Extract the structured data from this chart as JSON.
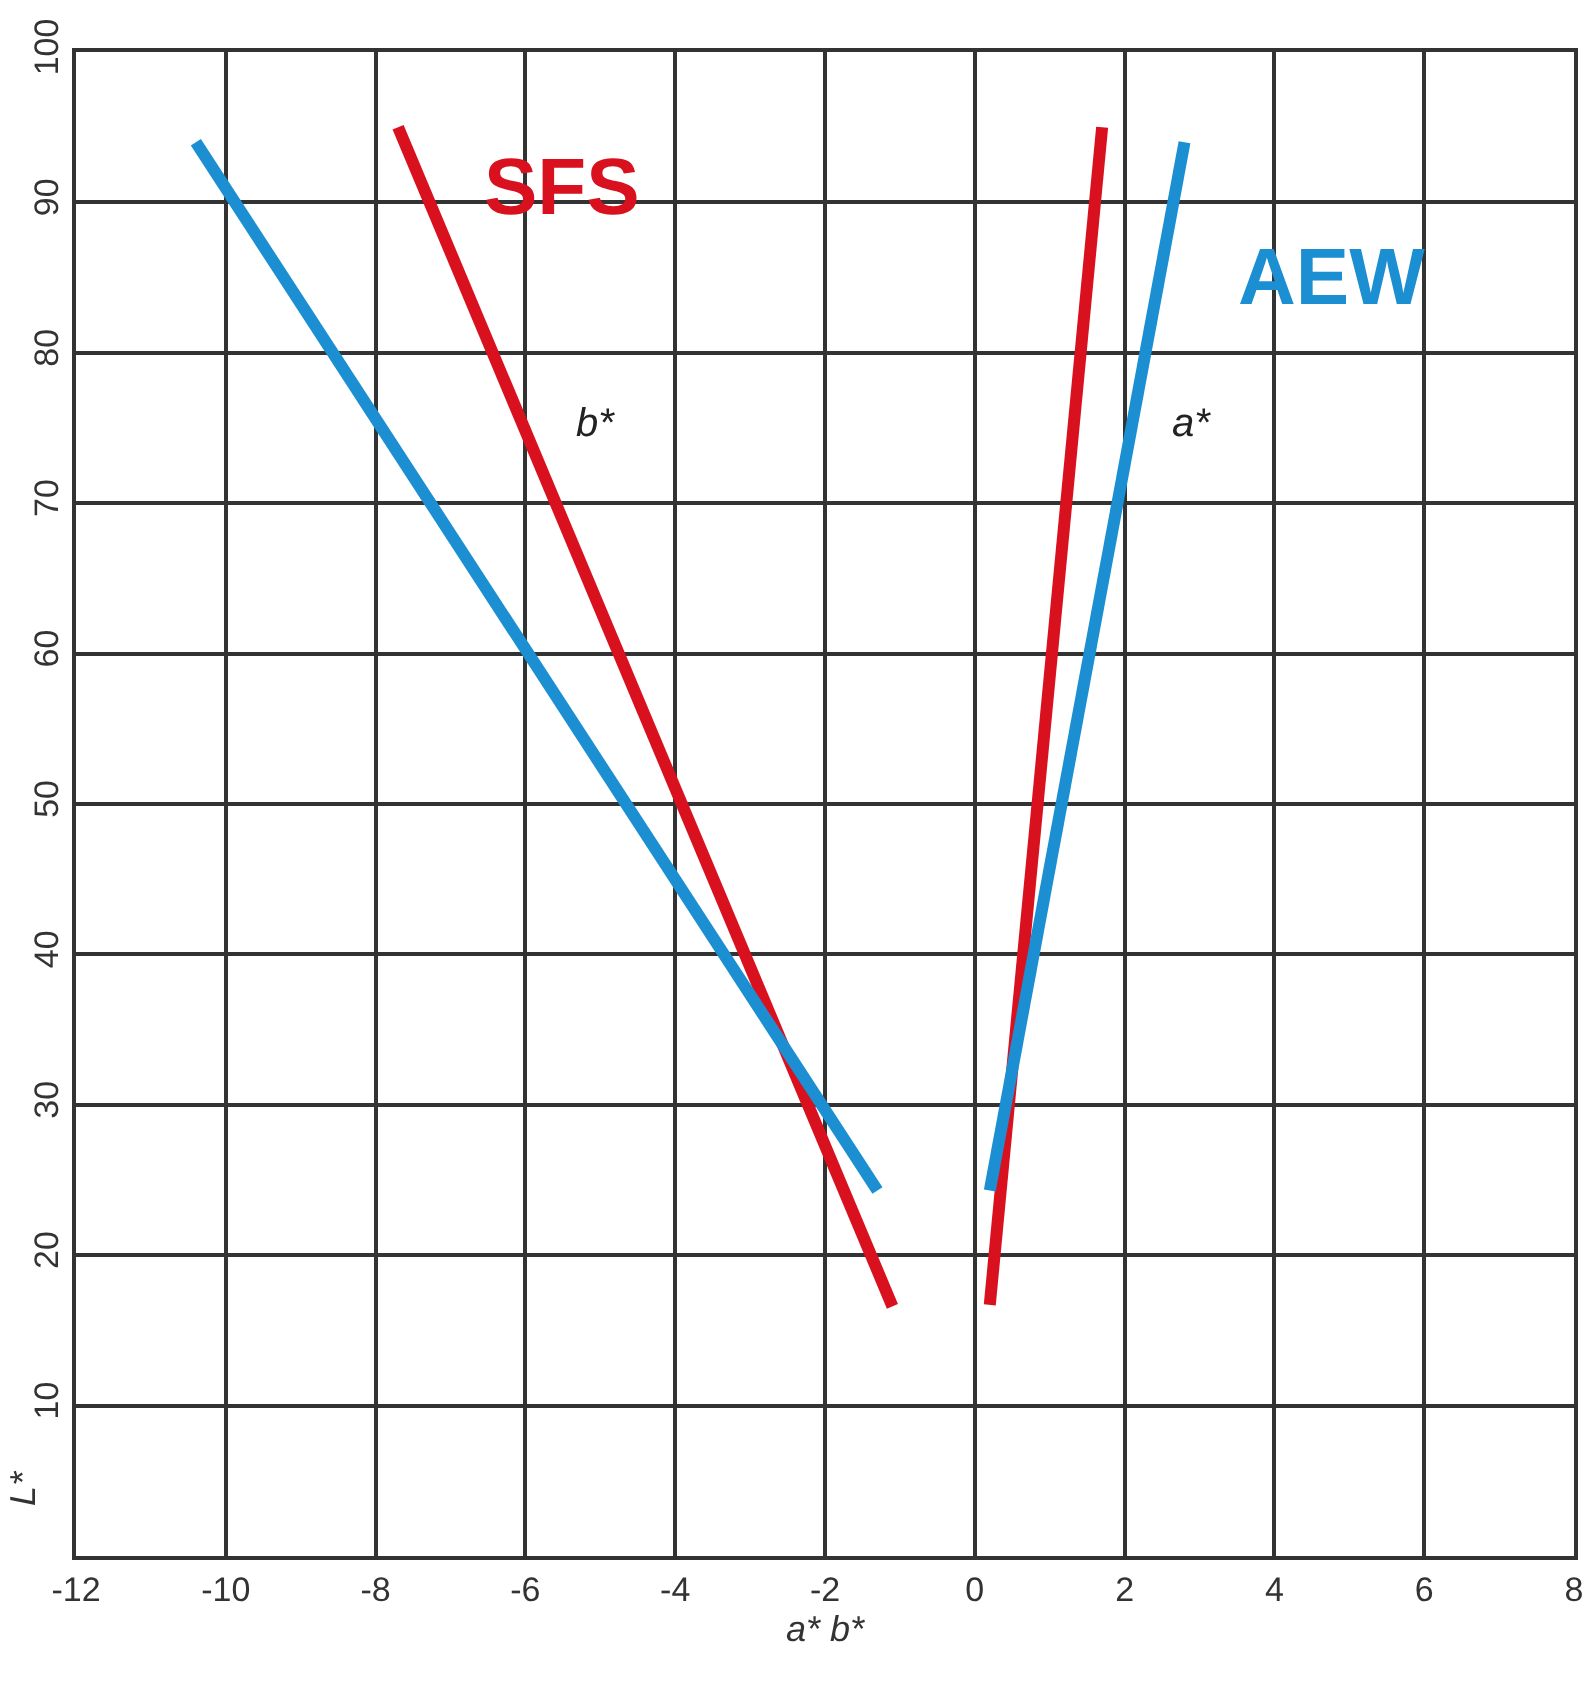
{
  "chart_data": {
    "type": "line",
    "xlabel": "a* b*",
    "ylabel": "L*",
    "series": [
      {
        "name": "SFS",
        "color": "#d9111f",
        "x": [
          -7.7,
          -1.1,
          null,
          0.2,
          1.7
        ],
        "values": [
          95,
          16.6,
          null,
          16.7,
          95
        ]
      },
      {
        "name": "AEW",
        "color": "#1b8fd2",
        "x": [
          -10.4,
          -1.3,
          null,
          0.2,
          2.8
        ],
        "values": [
          94,
          24.3,
          null,
          24.3,
          94
        ]
      }
    ],
    "annotations": [
      "b*",
      "a*"
    ],
    "xlim": [
      -12,
      8
    ],
    "xticks": [
      -12,
      -10,
      -8,
      -6,
      -4,
      -2,
      0,
      2,
      4,
      6,
      8
    ],
    "ylim": [
      0,
      100
    ],
    "yticks": [
      10,
      20,
      30,
      40,
      50,
      60,
      70,
      80,
      90,
      100
    ],
    "grid": true,
    "legend": false,
    "marker": "none",
    "line_style": "solid"
  }
}
